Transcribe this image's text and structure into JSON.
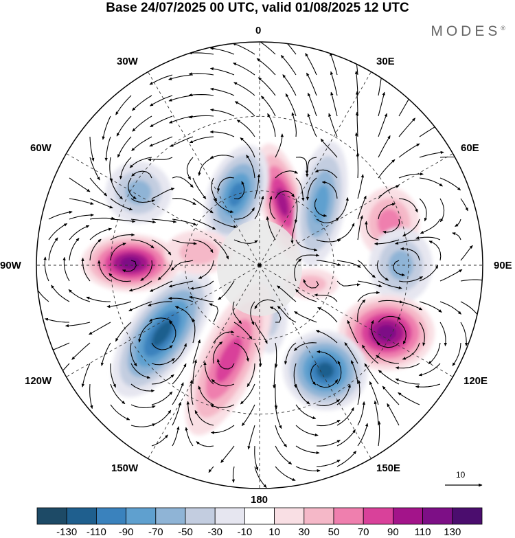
{
  "title": "Base 24/07/2025 00 UTC, valid 01/08/2025 12 UTC",
  "brand": {
    "name": "MODES",
    "mark": "®"
  },
  "longitude_labels": {
    "lon_0": "0",
    "lon_30e": "30E",
    "lon_60e": "60E",
    "lon_90e": "90E",
    "lon_120e": "120E",
    "lon_150e": "150E",
    "lon_180": "180",
    "lon_150w": "150W",
    "lon_120w": "120W",
    "lon_90w": "90W",
    "lon_60w": "60W",
    "lon_30w": "30W"
  },
  "reference_vector": {
    "value": "10"
  },
  "colorbar": {
    "labels": [
      "-130",
      "-110",
      "-90",
      "-70",
      "-50",
      "-30",
      "-10",
      "10",
      "30",
      "50",
      "70",
      "90",
      "110",
      "130"
    ],
    "colors": [
      "#1d4a66",
      "#1f5f8e",
      "#3a82bd",
      "#5fa0cf",
      "#8fb4d6",
      "#c3cde0",
      "#e6e6f0",
      "#ffffff",
      "#f9dfe4",
      "#f5b8c8",
      "#ef7fae",
      "#d9419a",
      "#a3148a",
      "#7d0f86",
      "#4b0d6e"
    ]
  },
  "anomalies": [
    {
      "lon": 20,
      "lat": 63,
      "value": 90,
      "rx": 32,
      "ry": 88,
      "rot": -15
    },
    {
      "lon": 342,
      "lat": 60,
      "value": -90,
      "rx": 42,
      "ry": 75,
      "rot": 20
    },
    {
      "lon": 45,
      "lat": 55,
      "value": -75,
      "rx": 36,
      "ry": 92,
      "rot": 10
    },
    {
      "lon": 72,
      "lat": 35,
      "value": 55,
      "rx": 44,
      "ry": 52,
      "rot": 0
    },
    {
      "lon": 90,
      "lat": 33,
      "value": -65,
      "rx": 46,
      "ry": 55,
      "rot": 0
    },
    {
      "lon": 118,
      "lat": 32,
      "value": 110,
      "rx": 70,
      "ry": 55,
      "rot": 0
    },
    {
      "lon": 148,
      "lat": 40,
      "value": -110,
      "rx": 62,
      "ry": 58,
      "rot": 15
    },
    {
      "lon": 168,
      "lat": 70,
      "value": -40,
      "rx": 26,
      "ry": 58,
      "rot": 0
    },
    {
      "lon": 198,
      "lat": 50,
      "value": 85,
      "rx": 42,
      "ry": 120,
      "rot": 25
    },
    {
      "lon": 235,
      "lat": 42,
      "value": -110,
      "rx": 48,
      "ry": 108,
      "rot": 35
    },
    {
      "lon": 271,
      "lat": 38,
      "value": 120,
      "rx": 72,
      "ry": 42,
      "rot": 0
    },
    {
      "lon": 301,
      "lat": 33,
      "value": -55,
      "rx": 48,
      "ry": 45,
      "rot": 0
    },
    {
      "lon": 282,
      "lat": 65,
      "value": 45,
      "rx": 50,
      "ry": 32,
      "rot": 0
    },
    {
      "lon": 110,
      "lat": 68,
      "value": 35,
      "rx": 40,
      "ry": 22,
      "rot": 0
    }
  ]
}
